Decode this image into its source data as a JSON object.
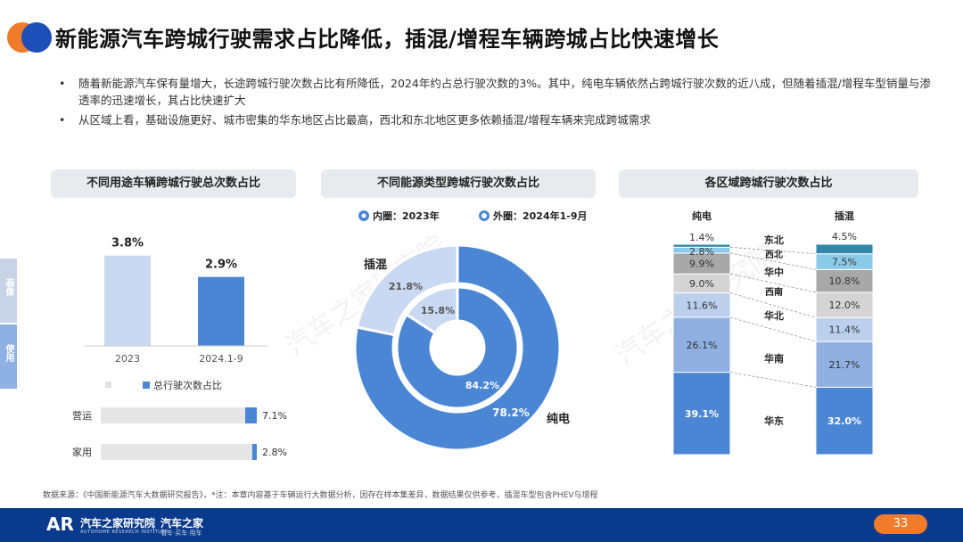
{
  "header": {
    "title": "新能源汽车跨城行驶需求占比降低，插混/增程车辆跨城占比快速增长",
    "bullets": [
      "随着新能源汽车保有量增大，长途跨城行驶次数占比有所降低，2024年约占总行驶次数的3%。其中，纯电车辆依然占跨城行驶次数的近八成，但随着插混/增程车型销量与渗透率的迅速增长，其占比快速扩大",
      "从区域上看，基础设施更好、城市密集的华东地区占比最高，西北和东北地区更多依赖插混/增程车辆来完成跨城需求"
    ],
    "bullet_symbol": "•"
  },
  "side_tabs": [
    {
      "label": "画像",
      "color": "#c9d3e6"
    },
    {
      "label": "使用",
      "color": "#8fb0e3"
    }
  ],
  "panels": {
    "left_title": "不同用途车辆跨城行驶总次数占比",
    "middle_title": "不同能源类型跨城行驶次数占比",
    "right_title": "各区域跨城行驶次数占比"
  },
  "colors": {
    "primary_blue": "#4a86d4",
    "light_blue": "#c9d9f1",
    "grey_bar": "#e6e6e6",
    "footer": "#0a3a8c",
    "accent_orange": "#f07b2a"
  },
  "chart_data": [
    {
      "type": "bar",
      "categories": [
        "2023",
        "2024.1-9"
      ],
      "values": [
        3.8,
        2.9
      ],
      "value_labels": [
        "3.8%",
        "2.9%"
      ],
      "legend": [
        "总行驶次数占比"
      ],
      "legend_placement": "bottom",
      "ylim": [
        0,
        4.5
      ]
    },
    {
      "type": "bar",
      "orientation": "horizontal",
      "categories": [
        "营运",
        "家用"
      ],
      "values": [
        7.1,
        2.8
      ],
      "value_labels": [
        "7.1%",
        "2.8%"
      ],
      "xlim": [
        0,
        100
      ]
    },
    {
      "type": "pie",
      "style": "double-donut",
      "legend": [
        "内圈：2023年",
        "外圈：2024年1-9月"
      ],
      "legend_placement": "top",
      "categories": [
        "纯电",
        "插混"
      ],
      "series": [
        {
          "name": "内圈：2023年",
          "values": [
            84.2,
            15.8
          ],
          "labels": [
            "84.2%",
            "15.8%"
          ]
        },
        {
          "name": "外圈：2024年1-9月",
          "values": [
            78.2,
            21.8
          ],
          "labels": [
            "78.2%",
            "21.8%"
          ]
        }
      ]
    },
    {
      "type": "bar",
      "style": "stacked-100",
      "categories": [
        "纯电",
        "插混"
      ],
      "regions": [
        "华东",
        "华南",
        "华北",
        "西南",
        "华中",
        "西北",
        "东北"
      ],
      "region_colors": [
        "#4a86d4",
        "#8fb0e0",
        "#bcd0ee",
        "#d4d4d4",
        "#a8a8a8",
        "#8ccbe8",
        "#2e86a8"
      ],
      "series": [
        {
          "name": "华东",
          "values": [
            39.1,
            32.0
          ],
          "labels": [
            "39.1%",
            "32.0%"
          ]
        },
        {
          "name": "华南",
          "values": [
            26.1,
            21.7
          ],
          "labels": [
            "26.1%",
            "21.7%"
          ]
        },
        {
          "name": "华北",
          "values": [
            11.6,
            11.4
          ],
          "labels": [
            "11.6%",
            "11.4%"
          ]
        },
        {
          "name": "西南",
          "values": [
            9.0,
            12.0
          ],
          "labels": [
            "9.0%",
            "12.0%"
          ]
        },
        {
          "name": "华中",
          "values": [
            9.9,
            10.8
          ],
          "labels": [
            "9.9%",
            "10.8%"
          ]
        },
        {
          "name": "西北",
          "values": [
            2.8,
            7.5
          ],
          "labels": [
            "2.8%",
            "7.5%"
          ]
        },
        {
          "name": "东北",
          "values": [
            1.4,
            4.5
          ],
          "labels": [
            "1.4%",
            "4.5%"
          ]
        }
      ]
    }
  ],
  "footer": {
    "source": "数据来源：《中国新能源汽车大数据研究报告》，*注：本章内容基于车辆运行大数据分析，因存在样本集差异，数据结果仅供参考，插混车型包含PHEV与增程",
    "logo_mark": "AR",
    "org_name": "汽车之家研究院",
    "org_name_en": "AUTOHOME RESEARCH INSTITUTE",
    "brand_name": "汽车之家",
    "brand_slogan": "看车·买车·用车",
    "page_number": "33"
  }
}
